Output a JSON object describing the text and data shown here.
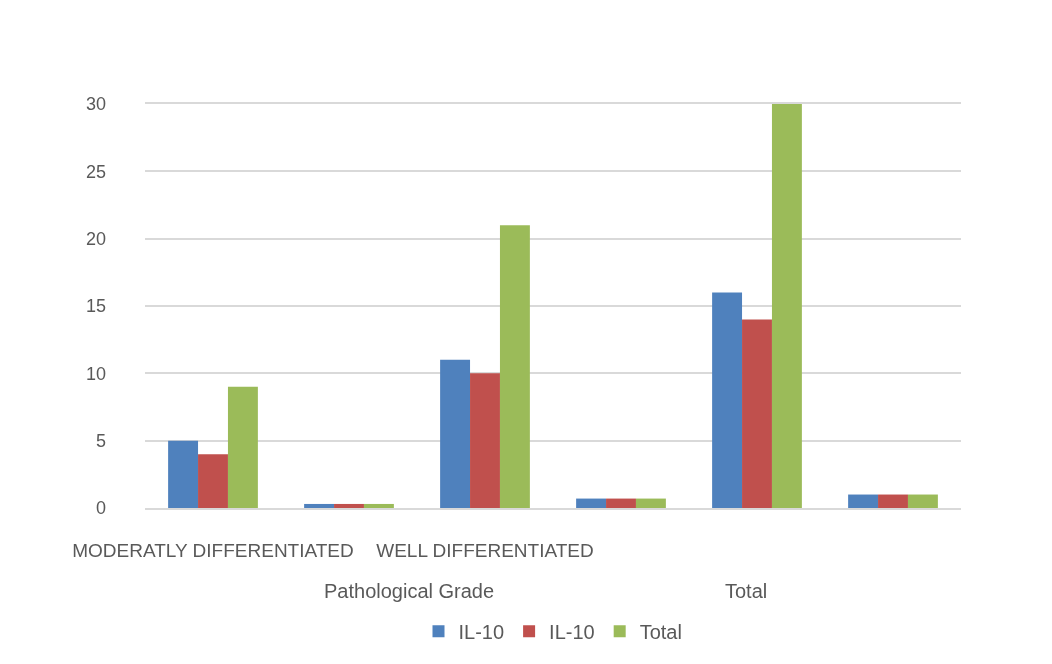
{
  "chart_data": {
    "type": "bar",
    "categories": [
      "MODERATLY DIFFERENTIATED",
      null,
      "WELL DIFFERENTIATED",
      null,
      null,
      null
    ],
    "series": [
      {
        "name": "IL-10",
        "color": "#4f81bd",
        "values": [
          5,
          0.3,
          11,
          0.7,
          16,
          1
        ]
      },
      {
        "name": "IL-10",
        "color": "#c0504d",
        "values": [
          4,
          0.3,
          10,
          0.7,
          14,
          1
        ]
      },
      {
        "name": "Total",
        "color": "#9bbb59",
        "values": [
          9,
          0.3,
          21,
          0.7,
          30,
          1
        ]
      }
    ],
    "ylim": [
      0,
      30
    ],
    "yticks": [
      0,
      5,
      10,
      15,
      20,
      25,
      30
    ],
    "grid": "y",
    "legend": "bottom",
    "annotations": [
      "Pathological Grade",
      "Total"
    ]
  }
}
